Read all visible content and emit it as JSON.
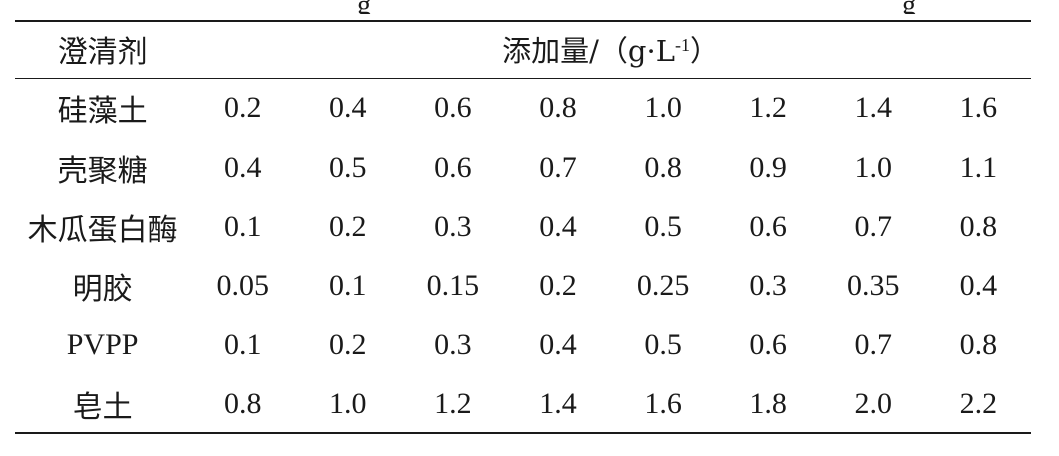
{
  "table": {
    "top_fragments": [
      "g",
      "g"
    ],
    "header": {
      "agent_label": "澄清剂",
      "dosage_label_prefix": "添加量/（g·L",
      "dosage_label_exp": "-1",
      "dosage_label_suffix": "）"
    },
    "rows": [
      {
        "agent": "硅藻土",
        "values": [
          "0.2",
          "0.4",
          "0.6",
          "0.8",
          "1.0",
          "1.2",
          "1.4",
          "1.6"
        ]
      },
      {
        "agent": "壳聚糖",
        "values": [
          "0.4",
          "0.5",
          "0.6",
          "0.7",
          "0.8",
          "0.9",
          "1.0",
          "1.1"
        ]
      },
      {
        "agent": "木瓜蛋白酶",
        "values": [
          "0.1",
          "0.2",
          "0.3",
          "0.4",
          "0.5",
          "0.6",
          "0.7",
          "0.8"
        ]
      },
      {
        "agent": "明胶",
        "values": [
          "0.05",
          "0.1",
          "0.15",
          "0.2",
          "0.25",
          "0.3",
          "0.35",
          "0.4"
        ]
      },
      {
        "agent": "PVPP",
        "values": [
          "0.1",
          "0.2",
          "0.3",
          "0.4",
          "0.5",
          "0.6",
          "0.7",
          "0.8"
        ]
      },
      {
        "agent": "皂土",
        "values": [
          "0.8",
          "1.0",
          "1.2",
          "1.4",
          "1.6",
          "1.8",
          "2.0",
          "2.2"
        ]
      }
    ]
  }
}
